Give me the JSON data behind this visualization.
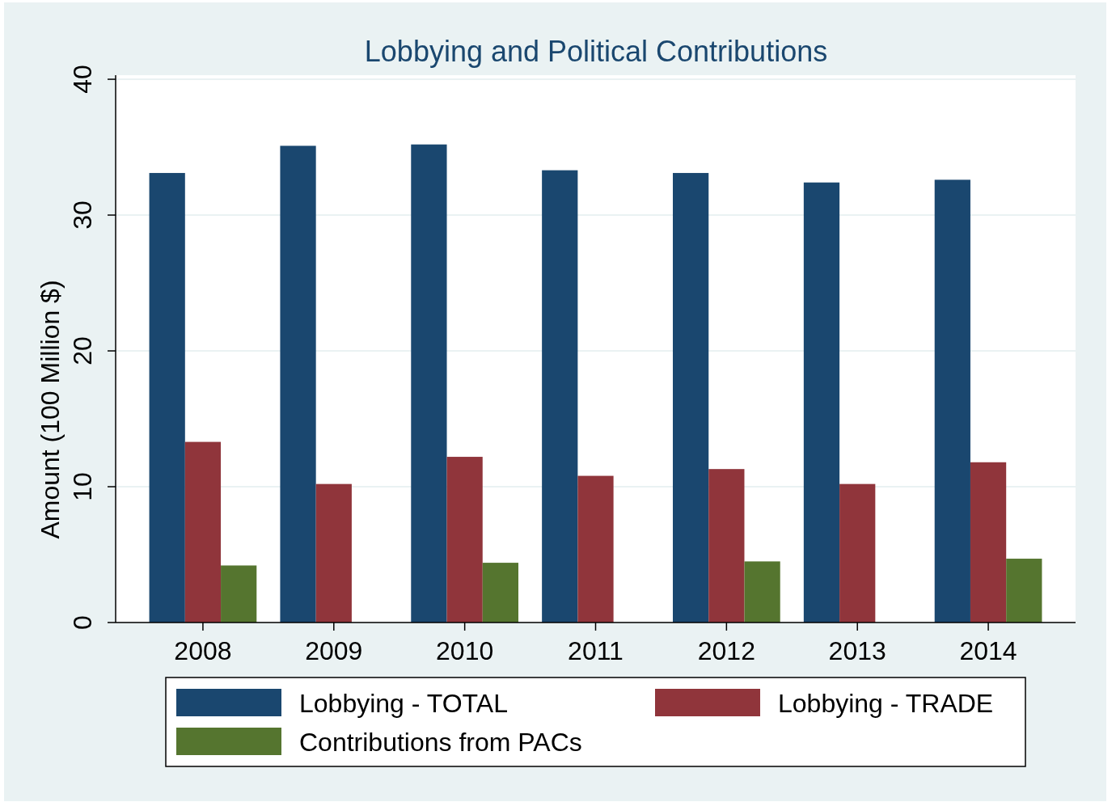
{
  "chart_data": {
    "type": "bar",
    "title": "Lobbying and Political Contributions",
    "ylabel": "Amount (100 Million $)",
    "categories": [
      "2008",
      "2009",
      "2010",
      "2011",
      "2012",
      "2013",
      "2014"
    ],
    "series": [
      {
        "name": "Lobbying - TOTAL",
        "color": "#1a476f",
        "values": [
          33.1,
          35.1,
          35.2,
          33.3,
          33.1,
          32.4,
          32.6
        ]
      },
      {
        "name": "Lobbying - TRADE",
        "color": "#90353b",
        "values": [
          13.3,
          10.2,
          12.2,
          10.8,
          11.3,
          10.2,
          11.8
        ]
      },
      {
        "name": "Contributions from PACs",
        "color": "#55752f",
        "values": [
          4.2,
          null,
          4.4,
          null,
          4.5,
          null,
          4.7
        ]
      }
    ],
    "ylim": [
      0,
      40.3
    ],
    "yticks": [
      0,
      10,
      20,
      30,
      40
    ],
    "grid": "y",
    "legend": "bottom"
  }
}
